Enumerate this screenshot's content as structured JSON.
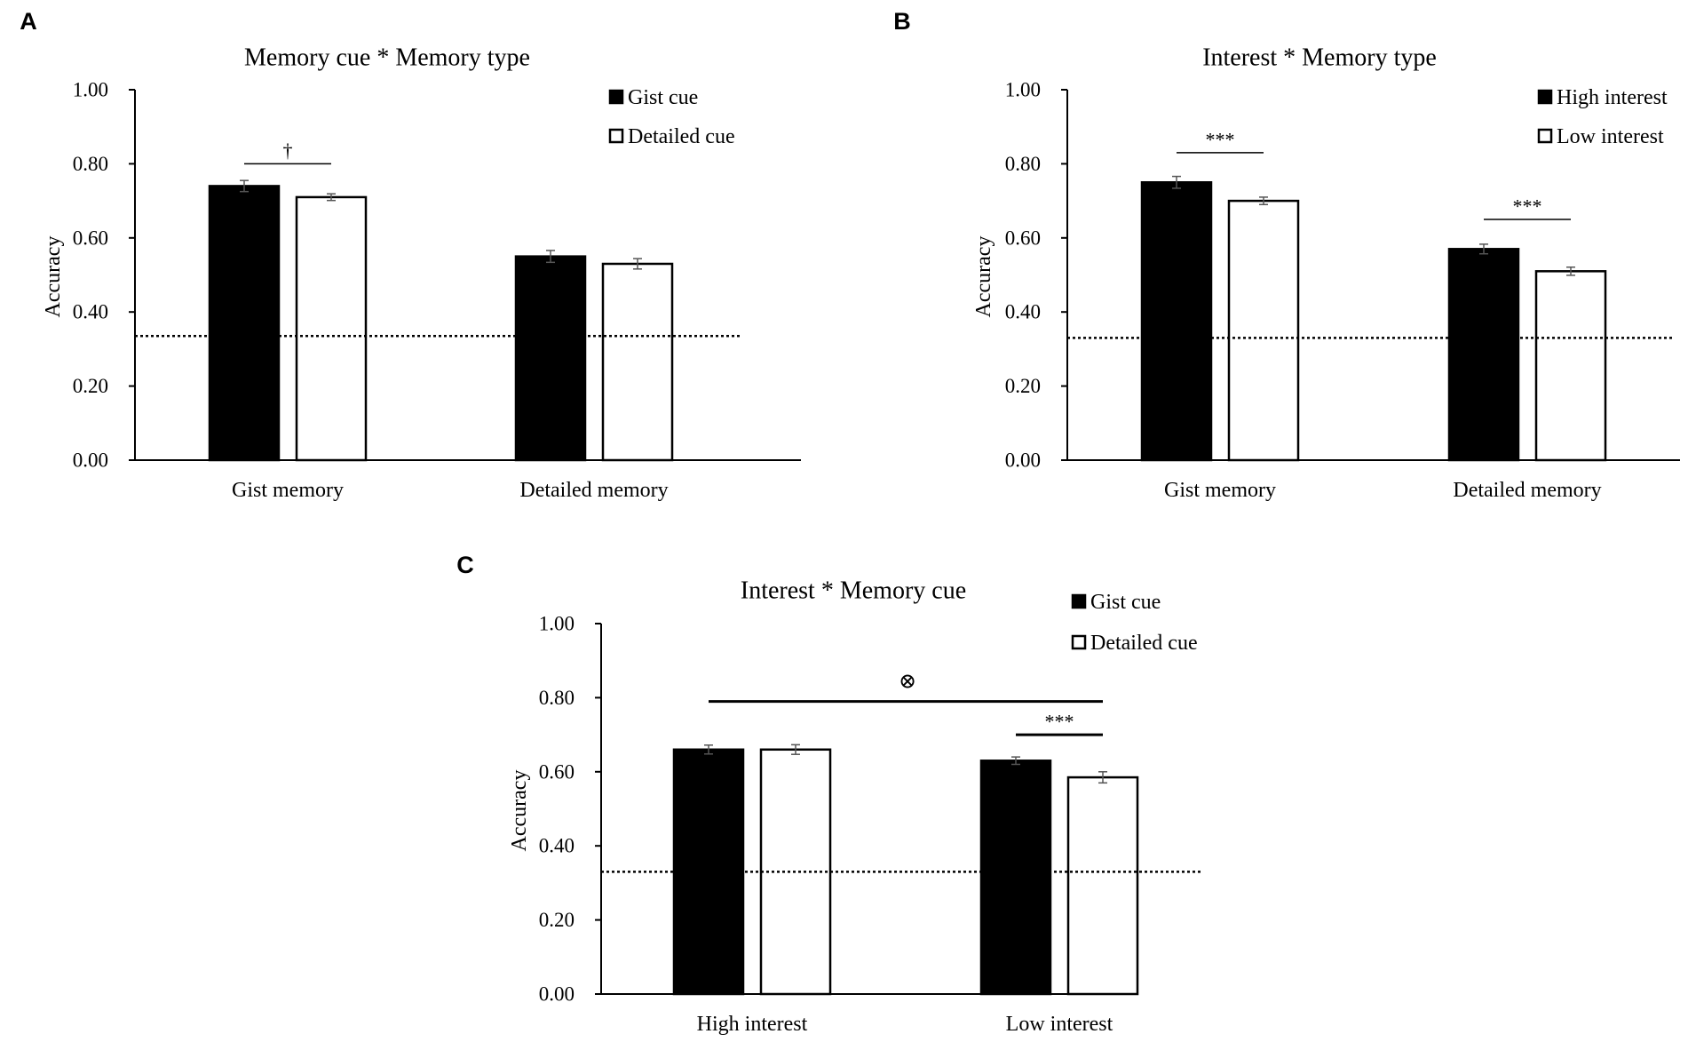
{
  "chart_data": [
    {
      "panel_label": "A",
      "type": "bar",
      "title": "Memory cue * Memory type",
      "ylabel": "Accuracy",
      "xlabel": "",
      "ylim": [
        0,
        1
      ],
      "yticks": [
        "0.00",
        "0.20",
        "0.40",
        "0.60",
        "0.80",
        "1.00"
      ],
      "categories": [
        "Gist memory",
        "Detailed memory"
      ],
      "series": [
        {
          "name": "Gist cue",
          "fill": "#000000",
          "values": [
            0.74,
            0.55
          ],
          "errors": [
            0.015,
            0.016
          ]
        },
        {
          "name": "Detailed cue",
          "fill": "#ffffff",
          "values": [
            0.71,
            0.53
          ],
          "errors": [
            0.009,
            0.014
          ]
        }
      ],
      "chance_level": 0.335,
      "annotations": [
        {
          "text": "†",
          "category": 0,
          "at": 0.8
        }
      ],
      "legend_position": "top-right"
    },
    {
      "panel_label": "B",
      "type": "bar",
      "title": "Interest * Memory type",
      "ylabel": "Accuracy",
      "xlabel": "",
      "ylim": [
        0,
        1
      ],
      "yticks": [
        "0.00",
        "0.20",
        "0.40",
        "0.60",
        "0.80",
        "1.00"
      ],
      "categories": [
        "Gist memory",
        "Detailed memory"
      ],
      "series": [
        {
          "name": "High interest",
          "fill": "#000000",
          "values": [
            0.75,
            0.57
          ],
          "errors": [
            0.016,
            0.013
          ]
        },
        {
          "name": "Low interest",
          "fill": "#ffffff",
          "values": [
            0.7,
            0.51
          ],
          "errors": [
            0.01,
            0.011
          ]
        }
      ],
      "chance_level": 0.33,
      "annotations": [
        {
          "text": "***",
          "category": 0,
          "at": 0.83
        },
        {
          "text": "***",
          "category": 1,
          "at": 0.65
        }
      ],
      "legend_position": "top-right"
    },
    {
      "panel_label": "C",
      "type": "bar",
      "title": "Interest * Memory cue",
      "ylabel": "Accuracy",
      "xlabel": "",
      "ylim": [
        0,
        1
      ],
      "yticks": [
        "0.00",
        "0.20",
        "0.40",
        "0.60",
        "0.80",
        "1.00"
      ],
      "categories": [
        "High interest",
        "Low interest"
      ],
      "series": [
        {
          "name": "Gist cue",
          "fill": "#000000",
          "values": [
            0.66,
            0.63
          ],
          "errors": [
            0.012,
            0.01
          ]
        },
        {
          "name": "Detailed cue",
          "fill": "#ffffff",
          "values": [
            0.66,
            0.585
          ],
          "errors": [
            0.013,
            0.015
          ]
        }
      ],
      "chance_level": 0.33,
      "annotations": [
        {
          "text": "⊗",
          "span": "interaction",
          "at": 0.79
        },
        {
          "text": "***",
          "category": 1,
          "at": 0.7
        }
      ],
      "legend_position": "top-right"
    }
  ]
}
